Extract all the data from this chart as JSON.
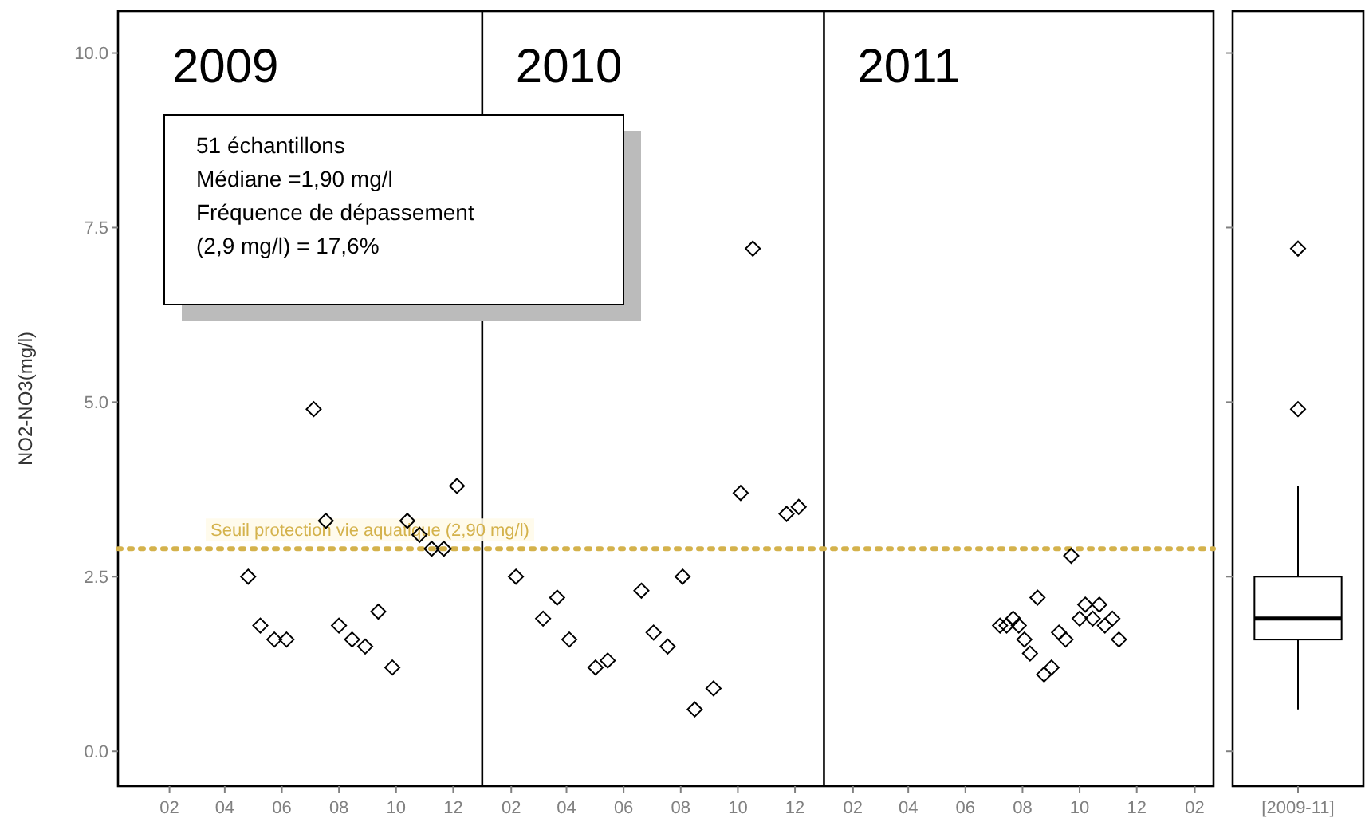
{
  "chart_data": [
    {
      "type": "scatter",
      "ylabel": "NO2-NO3(mg/l)",
      "xlim": [
        "2008-12-08",
        "2012-02-21"
      ],
      "ylim": [
        -0.5,
        10.6
      ],
      "xticks": [
        {
          "value": "2009-02-01",
          "label": "02"
        },
        {
          "value": "2009-04-01",
          "label": "04"
        },
        {
          "value": "2009-06-01",
          "label": "06"
        },
        {
          "value": "2009-08-01",
          "label": "08"
        },
        {
          "value": "2009-10-01",
          "label": "10"
        },
        {
          "value": "2009-12-01",
          "label": "12"
        },
        {
          "value": "2010-02-01",
          "label": "02"
        },
        {
          "value": "2010-04-01",
          "label": "04"
        },
        {
          "value": "2010-06-01",
          "label": "06"
        },
        {
          "value": "2010-08-01",
          "label": "08"
        },
        {
          "value": "2010-10-01",
          "label": "10"
        },
        {
          "value": "2010-12-01",
          "label": "12"
        },
        {
          "value": "2011-02-01",
          "label": "02"
        },
        {
          "value": "2011-04-01",
          "label": "04"
        },
        {
          "value": "2011-06-01",
          "label": "06"
        },
        {
          "value": "2011-08-01",
          "label": "08"
        },
        {
          "value": "2011-10-01",
          "label": "10"
        },
        {
          "value": "2011-12-01",
          "label": "12"
        },
        {
          "value": "2012-02-01",
          "label": "02"
        }
      ],
      "yticks": [
        {
          "value": 0,
          "label": "0.0"
        },
        {
          "value": 2.5,
          "label": "2.5"
        },
        {
          "value": 5,
          "label": "5.0"
        },
        {
          "value": 7.5,
          "label": "7.5"
        },
        {
          "value": 10,
          "label": "10.0"
        }
      ],
      "marker": "diamond",
      "grid": false,
      "series": [
        {
          "color": "#000000",
          "x": [
            "2009-04-26",
            "2009-05-09",
            "2009-05-24",
            "2009-06-06",
            "2009-07-05",
            "2009-07-18",
            "2009-08-01",
            "2009-08-15",
            "2009-08-29",
            "2009-09-12",
            "2009-09-27",
            "2009-10-13",
            "2009-10-26",
            "2009-11-08",
            "2009-11-21",
            "2009-12-05",
            "2010-02-06",
            "2010-03-07",
            "2010-03-22",
            "2010-04-04",
            "2010-05-02",
            "2010-05-15",
            "2010-06-20",
            "2010-07-03",
            "2010-07-18",
            "2010-08-03",
            "2010-08-16",
            "2010-09-05",
            "2010-10-04",
            "2010-10-17",
            "2010-11-22",
            "2010-12-05",
            "2011-07-08",
            "2011-07-15",
            "2011-07-22",
            "2011-07-28",
            "2011-08-03",
            "2011-08-09",
            "2011-08-17",
            "2011-08-24",
            "2011-09-01",
            "2011-09-09",
            "2011-09-16",
            "2011-09-22",
            "2011-10-01",
            "2011-10-07",
            "2011-10-15",
            "2011-10-22",
            "2011-10-28",
            "2011-11-05",
            "2011-11-12"
          ],
          "values": [
            2.5,
            1.8,
            1.6,
            1.6,
            4.9,
            3.3,
            1.8,
            1.6,
            1.5,
            2.0,
            1.2,
            3.3,
            3.1,
            2.9,
            2.9,
            3.8,
            2.5,
            1.9,
            2.2,
            1.6,
            1.2,
            1.3,
            2.3,
            1.7,
            1.5,
            2.5,
            0.6,
            0.9,
            3.7,
            7.2,
            3.4,
            3.5,
            1.8,
            1.8,
            1.9,
            1.8,
            1.6,
            1.4,
            2.2,
            1.1,
            1.2,
            1.7,
            1.6,
            2.8,
            1.9,
            2.1,
            1.9,
            2.1,
            1.8,
            1.9,
            1.6
          ]
        }
      ],
      "ref_lines": [
        {
          "axis": "x",
          "value": "2010-01-01",
          "color": "#000000",
          "line_style": "solid"
        },
        {
          "axis": "x",
          "value": "2011-01-01",
          "color": "#000000",
          "line_style": "solid"
        },
        {
          "axis": "y",
          "value": 2.9,
          "label": "Seuil protection vie aquatique (2,90 mg/l)",
          "color": "#d4b24c",
          "line_style": "dotted"
        }
      ],
      "annotations": [
        "2009",
        "2010",
        "2011",
        "51 échantillons\nMédiane =1,90 mg/l\nFréquence de dépassement\n(2,9 mg/l) = 17,6%"
      ]
    },
    {
      "type": "box",
      "categories": [
        "[2009-11]"
      ],
      "ylim": [
        -0.5,
        10.6
      ],
      "tick_labels": "x",
      "marker": "diamond",
      "yticks": [
        0,
        2.5,
        5,
        7.5,
        10
      ],
      "boxes": [
        {
          "low": 0.6,
          "q1": 1.6,
          "median": 1.9,
          "q3": 2.5,
          "high": 3.8,
          "outliers": [
            4.9,
            7.2
          ]
        }
      ]
    }
  ]
}
